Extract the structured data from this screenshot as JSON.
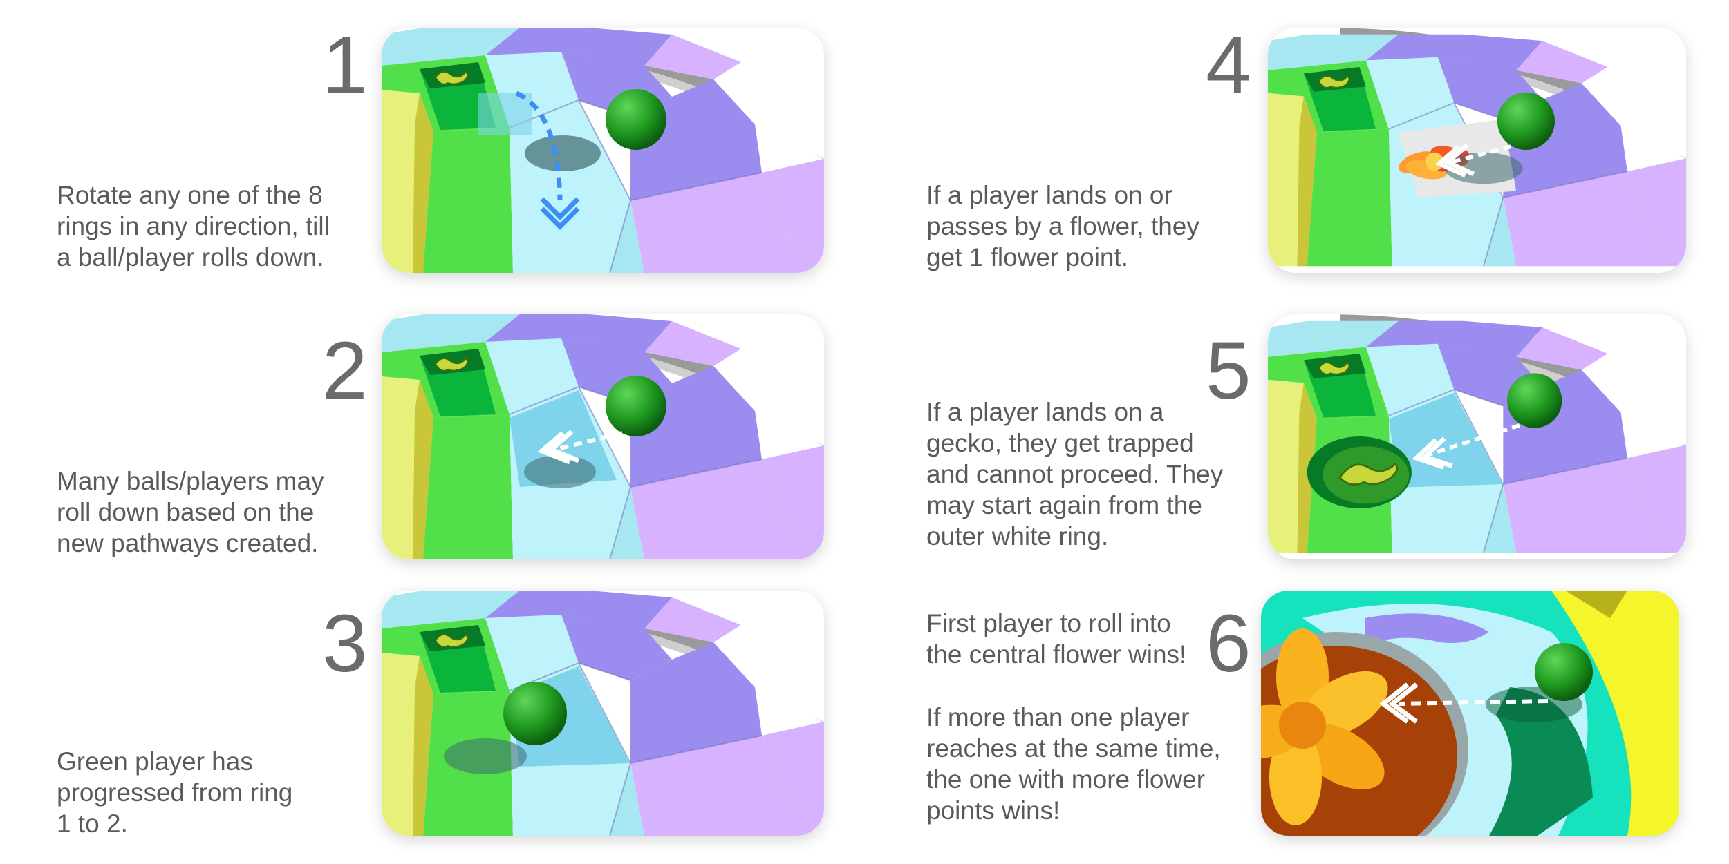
{
  "steps": [
    {
      "number": "1",
      "text": [
        "Rotate any one of the 8",
        "rings in any direction, till",
        "a ball/player rolls down."
      ]
    },
    {
      "number": "2",
      "text": [
        "Many balls/players may",
        "roll down based on the",
        "new pathways created."
      ]
    },
    {
      "number": "3",
      "text": [
        "Green player has",
        "progressed from ring",
        "1 to 2."
      ]
    },
    {
      "number": "4",
      "text": [
        "If a player lands on or",
        "passes by a flower, they",
        "get 1 flower point."
      ]
    },
    {
      "number": "5",
      "text": [
        "If a player lands on a",
        "gecko, they get trapped",
        "and cannot proceed. They",
        "may start again from the",
        "outer white ring."
      ]
    },
    {
      "number": "6",
      "text": [
        "First player to roll into",
        "the central flower wins!"
      ],
      "text2": [
        "If more than one player",
        "reaches at the same time,",
        "the one with more flower",
        "points wins!"
      ]
    }
  ],
  "colors": {
    "number": "#6b6b6b",
    "text": "#5a5a5a",
    "ball": "#1f9a1f",
    "light_blue": "#bff3fb",
    "purple": "#9b8cf0",
    "lavender": "#d7b3ff",
    "green": "#52e04a",
    "yellow": "#e6f07a",
    "arrow_blue": "#3d8ef5"
  }
}
